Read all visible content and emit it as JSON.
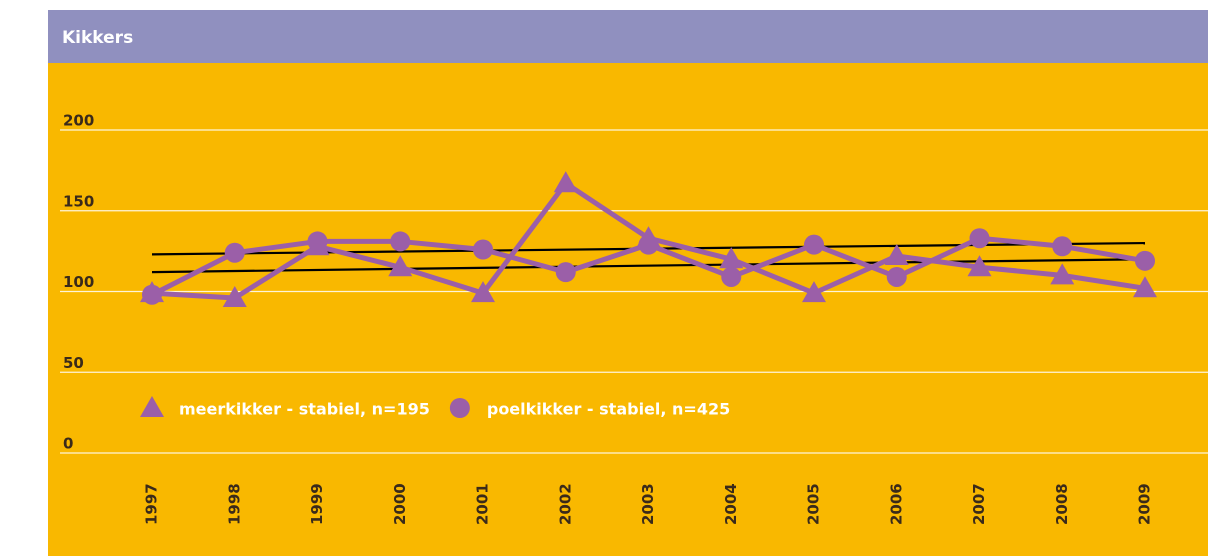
{
  "chart_data": {
    "type": "line",
    "title": "Kikkers",
    "categories": [
      "1997",
      "1998",
      "1999",
      "2000",
      "2001",
      "2002",
      "2003",
      "2004",
      "2005",
      "2006",
      "2007",
      "2008",
      "2009"
    ],
    "series": [
      {
        "name": "meerkikker - stabiel, n=195",
        "color": "#9b5fa8",
        "marker": "triangle",
        "values": [
          99,
          96,
          128,
          115,
          99,
          167,
          133,
          120,
          99,
          122,
          115,
          110,
          102
        ],
        "trend": [
          112,
          120
        ]
      },
      {
        "name": "poelkikker - stabiel, n=425",
        "color": "#9b5fa8",
        "marker": "circle",
        "values": [
          98,
          124,
          131,
          131,
          126,
          112,
          129,
          109,
          129,
          109,
          133,
          128,
          119
        ],
        "trend": [
          123,
          130
        ]
      }
    ],
    "trend_color": "#000000",
    "ylim": [
      0,
      200
    ],
    "yticks": [
      0,
      50,
      100,
      150,
      200
    ],
    "grid": true
  }
}
